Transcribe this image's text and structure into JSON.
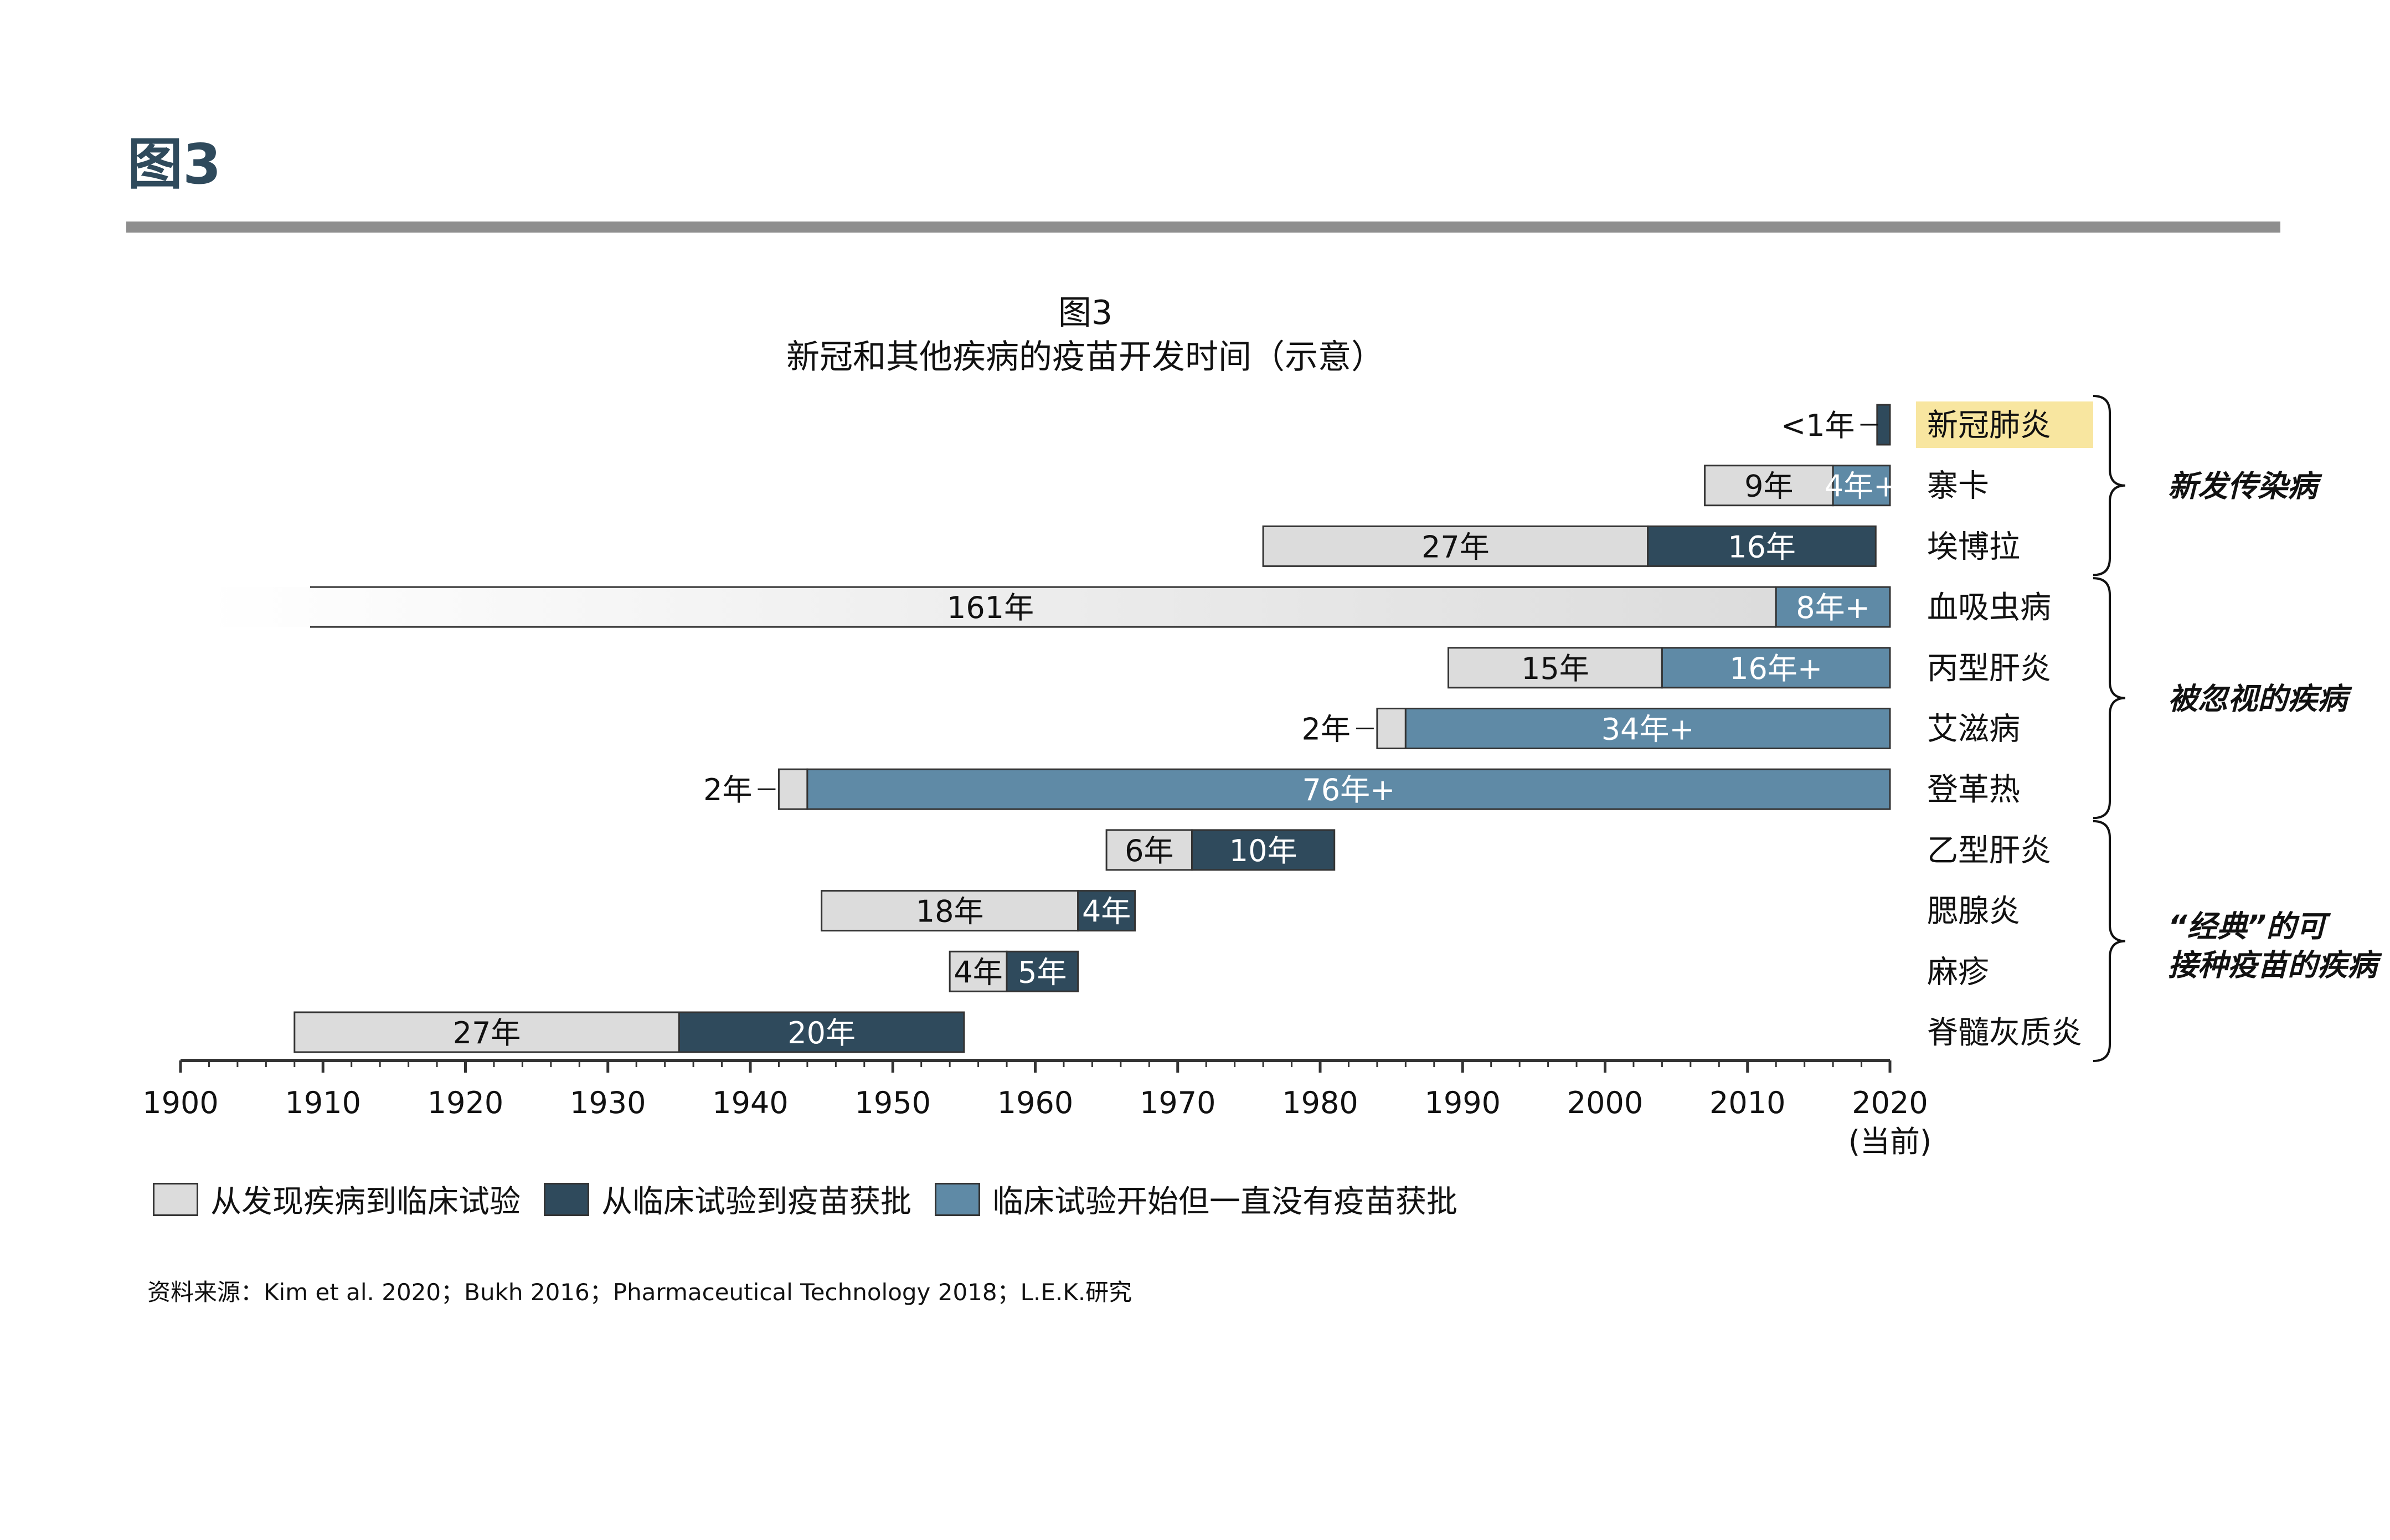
{
  "header": {
    "title": "图3"
  },
  "chart_data": {
    "type": "bar",
    "orientation": "horizontal",
    "title": "图3",
    "subtitle": "新冠和其他疾病的疫苗开发时间（示意）",
    "xlim": [
      1900,
      2020
    ],
    "x_ticks": [
      "1900",
      "1910",
      "1920",
      "1930",
      "1940",
      "1950",
      "1960",
      "1970",
      "1980",
      "1990",
      "2000",
      "2010",
      "2020"
    ],
    "x_tick_note": "(当前)",
    "colors": {
      "discovery": "#dcdcdc",
      "approval": "#2f4a5c",
      "ongoing": "#5f8aa6",
      "highlight": "#f8e6a0"
    },
    "rows": [
      {
        "disease": "新冠肺炎",
        "highlight": true,
        "segments": [
          {
            "kind": "discovery",
            "start": 2019.4,
            "end": 2019.4,
            "label": "<1年",
            "label_outside": true
          },
          {
            "kind": "approval",
            "start": 2019.1,
            "end": 2020.0,
            "label": ""
          }
        ]
      },
      {
        "disease": "寨卡",
        "segments": [
          {
            "kind": "discovery",
            "start": 2007,
            "end": 2016,
            "label": "9年"
          },
          {
            "kind": "ongoing",
            "start": 2016,
            "end": 2020,
            "label": "4年+"
          }
        ]
      },
      {
        "disease": "埃博拉",
        "segments": [
          {
            "kind": "discovery",
            "start": 1976,
            "end": 2003,
            "label": "27年"
          },
          {
            "kind": "approval",
            "start": 2003,
            "end": 2019,
            "label": "16年"
          }
        ]
      },
      {
        "disease": "血吸虫病",
        "fade_left": true,
        "segments": [
          {
            "kind": "discovery",
            "start": 1851,
            "end": 2012,
            "label": "161年"
          },
          {
            "kind": "ongoing",
            "start": 2012,
            "end": 2020,
            "label": "8年+"
          }
        ]
      },
      {
        "disease": "丙型肝炎",
        "segments": [
          {
            "kind": "discovery",
            "start": 1989,
            "end": 2004,
            "label": "15年"
          },
          {
            "kind": "ongoing",
            "start": 2004,
            "end": 2020,
            "label": "16年+"
          }
        ]
      },
      {
        "disease": "艾滋病",
        "segments": [
          {
            "kind": "discovery",
            "start": 1984,
            "end": 1986,
            "label": "2年",
            "label_outside": true
          },
          {
            "kind": "ongoing",
            "start": 1986,
            "end": 2020,
            "label": "34年+"
          }
        ]
      },
      {
        "disease": "登革热",
        "segments": [
          {
            "kind": "discovery",
            "start": 1942,
            "end": 1944,
            "label": "2年",
            "label_outside": true
          },
          {
            "kind": "ongoing",
            "start": 1944,
            "end": 2020,
            "label": "76年+"
          }
        ]
      },
      {
        "disease": "乙型肝炎",
        "segments": [
          {
            "kind": "discovery",
            "start": 1965,
            "end": 1971,
            "label": "6年"
          },
          {
            "kind": "approval",
            "start": 1971,
            "end": 1981,
            "label": "10年"
          }
        ]
      },
      {
        "disease": "腮腺炎",
        "segments": [
          {
            "kind": "discovery",
            "start": 1945,
            "end": 1963,
            "label": "18年"
          },
          {
            "kind": "approval",
            "start": 1963,
            "end": 1967,
            "label": "4年"
          }
        ]
      },
      {
        "disease": "麻疹",
        "segments": [
          {
            "kind": "discovery",
            "start": 1954,
            "end": 1958,
            "label": "4年"
          },
          {
            "kind": "approval",
            "start": 1958,
            "end": 1963,
            "label": "5年"
          }
        ]
      },
      {
        "disease": "脊髓灰质炎",
        "segments": [
          {
            "kind": "discovery",
            "start": 1908,
            "end": 1935,
            "label": "27年"
          },
          {
            "kind": "approval",
            "start": 1935,
            "end": 1955,
            "label": "20年"
          }
        ]
      }
    ],
    "groups": [
      {
        "label": "新发传染病",
        "first_row": 0,
        "last_row": 2
      },
      {
        "label": "被忽视的疾病",
        "first_row": 3,
        "last_row": 6
      },
      {
        "label": "“经典”的可接种疫苗的疾病",
        "first_row": 7,
        "last_row": 10
      }
    ],
    "legend": [
      {
        "key": "discovery",
        "label": "从发现疾病到临床试验"
      },
      {
        "key": "approval",
        "label": "从临床试验到疫苗获批"
      },
      {
        "key": "ongoing",
        "label": "临床试验开始但一直没有疫苗获批"
      }
    ]
  },
  "source": "资料来源：Kim et al. 2020；Bukh 2016；Pharmaceutical Technology 2018；L.E.K.研究"
}
